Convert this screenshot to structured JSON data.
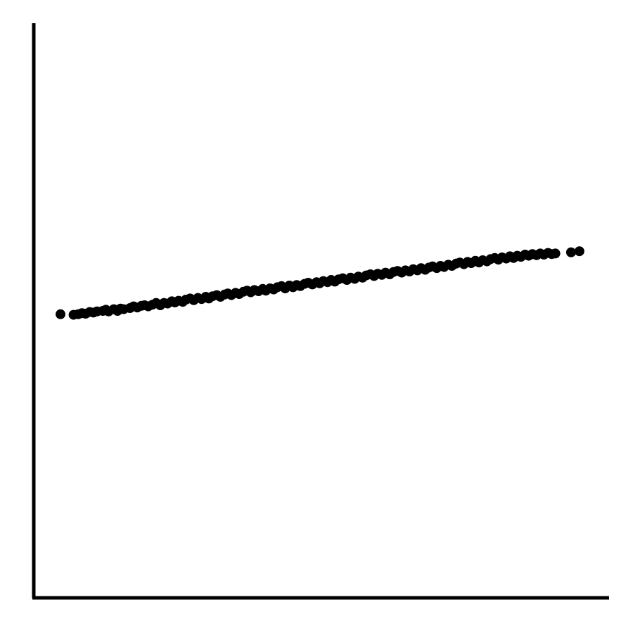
{
  "chart_data": {
    "type": "scatter",
    "title": "",
    "xlabel": "",
    "ylabel": "",
    "xlim": [
      0,
      100
    ],
    "ylim": [
      0,
      100
    ],
    "grid": false,
    "legend": "none",
    "marker_color": "#000000",
    "axis_color": "#000000",
    "series": [
      {
        "x": [
          0,
          2.5,
          3.4,
          4.1,
          4.8,
          5.6,
          6.3,
          7.0,
          8.1,
          8.7,
          9.2,
          10.2,
          10.9,
          11.5,
          12.1,
          13.3,
          14.0,
          14.7,
          15.5,
          16.1,
          16.8,
          17.6,
          18.3,
          19.1,
          19.8,
          20.5,
          21.3,
          21.9,
          22.6,
          23.4,
          24.0,
          24.8,
          25.5,
          26.3,
          27.0,
          27.8,
          28.4,
          29.1,
          29.9,
          30.6,
          31.4,
          32.0,
          32.7,
          33.5,
          34.2,
          35.0,
          35.7,
          36.4,
          37.1,
          37.9,
          38.7,
          39.3,
          40.1,
          40.8,
          41.5,
          42.3,
          43.0,
          43.8,
          44.5,
          45.2,
          45.9,
          46.7,
          47.4,
          48.2,
          49.0,
          49.6,
          50.3,
          51.1,
          51.8,
          52.5,
          53.2,
          54.0,
          54.8,
          55.5,
          56.3,
          57.0,
          57.8,
          58.5,
          59.3,
          60.0,
          60.7,
          61.5,
          62.2,
          63.0,
          63.7,
          64.5,
          65.3,
          66.0,
          66.8,
          67.5,
          68.3,
          69.0,
          69.8,
          70.5,
          71.2,
          72.0,
          72.7,
          73.4,
          74.2,
          74.9,
          75.7,
          76.4,
          77.2,
          77.9,
          78.6,
          79.4,
          80.1,
          80.8,
          81.6,
          82.3,
          83.1,
          83.8,
          84.5,
          85.3,
          86.0,
          86.7,
          87.4,
          88.1,
          88.9,
          89.6,
          90.3,
          91.1,
          91.8,
          92.5,
          93.3,
          94.0,
          94.7,
          97.7,
          99.3
        ],
        "y": [
          50.4,
          50.3,
          50.4,
          50.6,
          50.5,
          50.8,
          50.7,
          50.9,
          51.0,
          51.2,
          50.9,
          51.3,
          51.0,
          51.4,
          51.3,
          51.5,
          51.8,
          51.6,
          51.9,
          52.0,
          51.8,
          52.1,
          52.4,
          52.0,
          52.4,
          52.3,
          52.7,
          52.5,
          52.8,
          52.6,
          53.0,
          53.2,
          52.9,
          53.3,
          53.1,
          53.5,
          53.2,
          53.6,
          53.8,
          53.5,
          53.9,
          54.1,
          53.8,
          54.2,
          54.0,
          54.4,
          54.6,
          54.3,
          54.7,
          54.5,
          54.9,
          54.6,
          55.0,
          54.8,
          55.2,
          55.4,
          55.0,
          55.5,
          55.2,
          55.6,
          55.4,
          55.8,
          56.0,
          55.7,
          56.1,
          55.9,
          56.3,
          56.1,
          56.5,
          56.2,
          56.6,
          56.8,
          56.5,
          56.9,
          56.7,
          57.1,
          56.9,
          57.3,
          57.5,
          57.2,
          57.6,
          57.4,
          57.8,
          57.5,
          57.9,
          58.1,
          57.8,
          58.2,
          58.0,
          58.4,
          58.2,
          58.6,
          58.3,
          58.7,
          58.9,
          58.6,
          59.0,
          58.8,
          59.2,
          59.0,
          59.4,
          59.6,
          59.3,
          59.7,
          59.5,
          59.9,
          59.6,
          60.0,
          59.8,
          60.2,
          60.4,
          60.1,
          60.5,
          60.3,
          60.7,
          60.4,
          60.8,
          60.6,
          61.0,
          60.8,
          61.1,
          60.9,
          61.2,
          61.0,
          61.3,
          61.1,
          61.2,
          61.4,
          61.6
        ]
      }
    ]
  }
}
